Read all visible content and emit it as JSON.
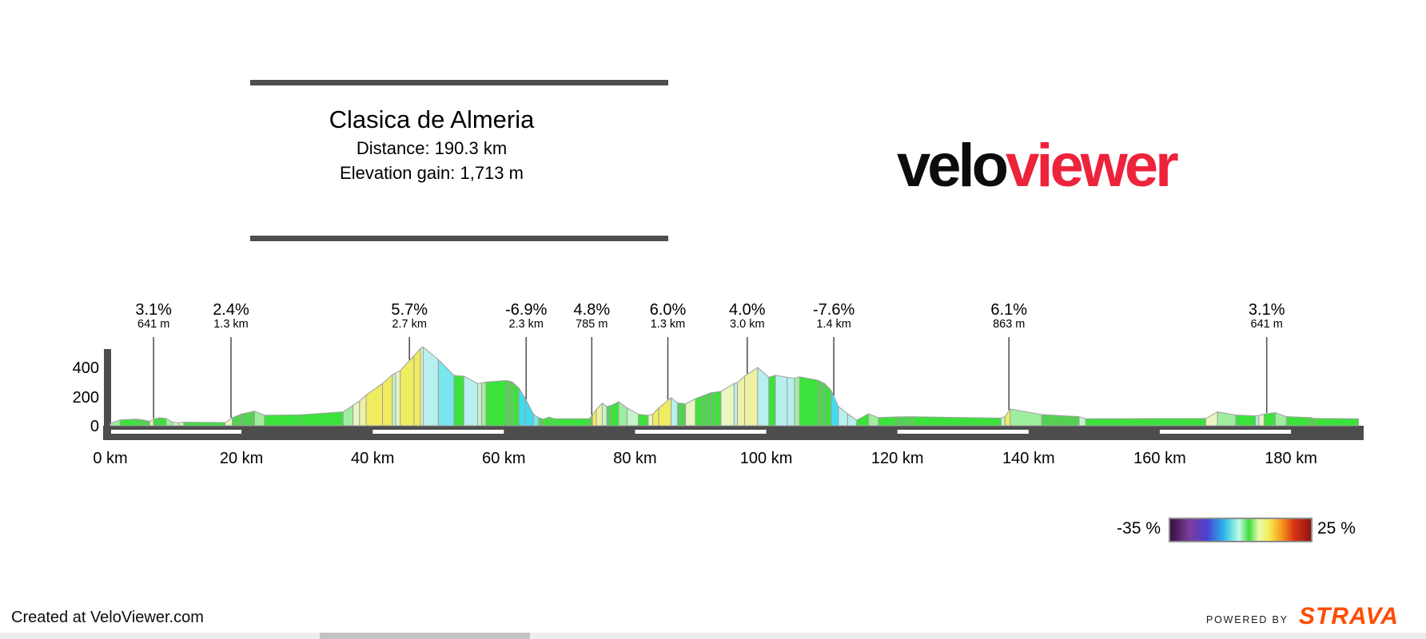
{
  "page": {
    "header": {
      "title": "Clasica de Almeria",
      "distance": "Distance: 190.3 km",
      "elevation_gain": "Elevation gain: 1,713 m"
    },
    "brand": {
      "velo": "velo",
      "viewer": "viewer"
    },
    "footer": {
      "credit": "Created at VeloViewer.com",
      "powered_by": "POWERED BY",
      "strava": "STRAVA"
    }
  },
  "chart_data": {
    "type": "area",
    "title": "Clasica de Almeria",
    "distance_km": 190.3,
    "elevation_gain_m": 1713,
    "xlim": [
      0,
      190.3
    ],
    "ylim": [
      0,
      560
    ],
    "grid": "off",
    "x_ticks": [
      {
        "km": 0,
        "label": "0 km"
      },
      {
        "km": 20,
        "label": "20 km"
      },
      {
        "km": 40,
        "label": "40 km"
      },
      {
        "km": 60,
        "label": "60 km"
      },
      {
        "km": 80,
        "label": "80 km"
      },
      {
        "km": 100,
        "label": "100 km"
      },
      {
        "km": 120,
        "label": "120 km"
      },
      {
        "km": 140,
        "label": "140 km"
      },
      {
        "km": 160,
        "label": "160 km"
      },
      {
        "km": 180,
        "label": "180 km"
      }
    ],
    "y_ticks": [
      {
        "m": 0,
        "label": "0"
      },
      {
        "m": 200,
        "label": "200"
      },
      {
        "m": 400,
        "label": "400"
      }
    ],
    "km_stripes": [
      [
        0,
        20
      ],
      [
        40,
        60
      ],
      [
        80,
        100
      ],
      [
        120,
        140
      ],
      [
        160,
        180
      ]
    ],
    "legend": {
      "min": "-35 %",
      "max": "25 %"
    },
    "callouts": [
      {
        "grade": "3.1%",
        "length": "641 m",
        "km": 6.6
      },
      {
        "grade": "2.4%",
        "length": "1.3 km",
        "km": 18.4
      },
      {
        "grade": "5.7%",
        "length": "2.7 km",
        "km": 45.6
      },
      {
        "grade": "-6.9%",
        "length": "2.3 km",
        "km": 63.4
      },
      {
        "grade": "4.8%",
        "length": "785 m",
        "km": 73.4
      },
      {
        "grade": "6.0%",
        "length": "1.3 km",
        "km": 85.0
      },
      {
        "grade": "4.0%",
        "length": "3.0 km",
        "km": 97.1
      },
      {
        "grade": "-7.6%",
        "length": "1.4 km",
        "km": 110.3
      },
      {
        "grade": "6.1%",
        "length": "863 m",
        "km": 137.0
      },
      {
        "grade": "3.1%",
        "length": "641 m",
        "km": 176.3
      }
    ],
    "palette": {
      "g": "#3ce23c",
      "g2": "#55d055",
      "lg": "#9fee9f",
      "mint": "#c6f4cb",
      "cream": "#e8f6c0",
      "py": "#eef0a4",
      "y": "#f0ec60",
      "pc": "#b7f0ee",
      "c": "#77e6ef",
      "bc": "#41dbef"
    },
    "profile": [
      [
        0,
        15,
        "lg"
      ],
      [
        1.5,
        40,
        "g"
      ],
      [
        4,
        45,
        "g"
      ],
      [
        5,
        40,
        "g2"
      ],
      [
        6,
        30,
        "cream"
      ],
      [
        6.6,
        45,
        "g"
      ],
      [
        7.5,
        55,
        "g"
      ],
      [
        8.5,
        50,
        "lg"
      ],
      [
        9.5,
        25,
        "mint"
      ],
      [
        10.5,
        20,
        "cream"
      ],
      [
        11.2,
        24,
        "g"
      ],
      [
        17.5,
        22,
        "cream"
      ],
      [
        18.6,
        55,
        "g2"
      ],
      [
        20,
        80,
        "g2"
      ],
      [
        22,
        100,
        "lg"
      ],
      [
        23.5,
        72,
        "g"
      ],
      [
        29,
        75,
        "g"
      ],
      [
        35.5,
        95,
        "lg"
      ],
      [
        37,
        140,
        "cream"
      ],
      [
        38,
        170,
        "py"
      ],
      [
        39,
        210,
        "y"
      ],
      [
        41.5,
        290,
        "y"
      ],
      [
        43,
        350,
        "mint"
      ],
      [
        43.5,
        362,
        "cream"
      ],
      [
        44.2,
        378,
        "y"
      ],
      [
        46.3,
        480,
        "y"
      ],
      [
        47.3,
        532,
        "cream"
      ],
      [
        47.7,
        540,
        "pc"
      ],
      [
        50,
        455,
        "c"
      ],
      [
        52.4,
        345,
        "g"
      ],
      [
        53.9,
        340,
        "pc"
      ],
      [
        56,
        290,
        "mint"
      ],
      [
        56.6,
        293,
        "lg"
      ],
      [
        57.3,
        300,
        "g"
      ],
      [
        60.4,
        310,
        "g2"
      ],
      [
        61.3,
        300,
        "g"
      ],
      [
        62.3,
        258,
        "bc"
      ],
      [
        63.3,
        185,
        "bc"
      ],
      [
        64.5,
        80,
        "c"
      ],
      [
        65.3,
        55,
        "g2"
      ],
      [
        66,
        45,
        "g"
      ],
      [
        66.9,
        60,
        "g"
      ],
      [
        67.7,
        48,
        "g"
      ],
      [
        73,
        48,
        "g2"
      ],
      [
        73.5,
        72,
        "y"
      ],
      [
        74.1,
        112,
        "py"
      ],
      [
        75,
        155,
        "mint"
      ],
      [
        75.7,
        132,
        "g2"
      ],
      [
        76.3,
        138,
        "g"
      ],
      [
        77.5,
        165,
        "lg"
      ],
      [
        78.8,
        122,
        "mint"
      ],
      [
        80.5,
        78,
        "g"
      ],
      [
        82,
        72,
        "cream"
      ],
      [
        82.7,
        78,
        "y"
      ],
      [
        83.6,
        122,
        "y"
      ],
      [
        85.5,
        192,
        "pc"
      ],
      [
        86.5,
        157,
        "g2"
      ],
      [
        87.7,
        150,
        "cream"
      ],
      [
        89.2,
        185,
        "g"
      ],
      [
        90.3,
        205,
        "g2"
      ],
      [
        91.6,
        227,
        "g"
      ],
      [
        92.3,
        230,
        "g"
      ],
      [
        93.1,
        236,
        "cream"
      ],
      [
        95.1,
        290,
        "pc"
      ],
      [
        95.6,
        296,
        "py"
      ],
      [
        96.7,
        340,
        "py"
      ],
      [
        98.7,
        400,
        "pc"
      ],
      [
        100.4,
        332,
        "g"
      ],
      [
        101.4,
        346,
        "pc"
      ],
      [
        103.2,
        332,
        "pc"
      ],
      [
        104.3,
        326,
        "lg"
      ],
      [
        105.1,
        336,
        "g"
      ],
      [
        107.9,
        312,
        "g2"
      ],
      [
        108.9,
        290,
        "g"
      ],
      [
        109.9,
        242,
        "bc"
      ],
      [
        111,
        132,
        "pc"
      ],
      [
        112.4,
        82,
        "pc"
      ],
      [
        113.8,
        38,
        "g"
      ],
      [
        115.6,
        82,
        "lg"
      ],
      [
        117.1,
        56,
        "g"
      ],
      [
        119.8,
        60,
        "g2"
      ],
      [
        122.3,
        62,
        "g"
      ],
      [
        135.8,
        52,
        "mint"
      ],
      [
        136.4,
        62,
        "y"
      ],
      [
        137.2,
        115,
        "lg"
      ],
      [
        142,
        77,
        "g2"
      ],
      [
        147.7,
        62,
        "mint"
      ],
      [
        148.7,
        48,
        "g"
      ],
      [
        167,
        50,
        "cream"
      ],
      [
        168.8,
        95,
        "lg"
      ],
      [
        171.6,
        73,
        "g"
      ],
      [
        174.6,
        68,
        "pc"
      ],
      [
        175.1,
        70,
        "cream"
      ],
      [
        175.9,
        80,
        "g"
      ],
      [
        177.6,
        90,
        "lg"
      ],
      [
        179.3,
        62,
        "g"
      ],
      [
        182.9,
        56,
        "g2"
      ],
      [
        183.5,
        50,
        "g"
      ],
      [
        190.3,
        48,
        null
      ]
    ]
  }
}
